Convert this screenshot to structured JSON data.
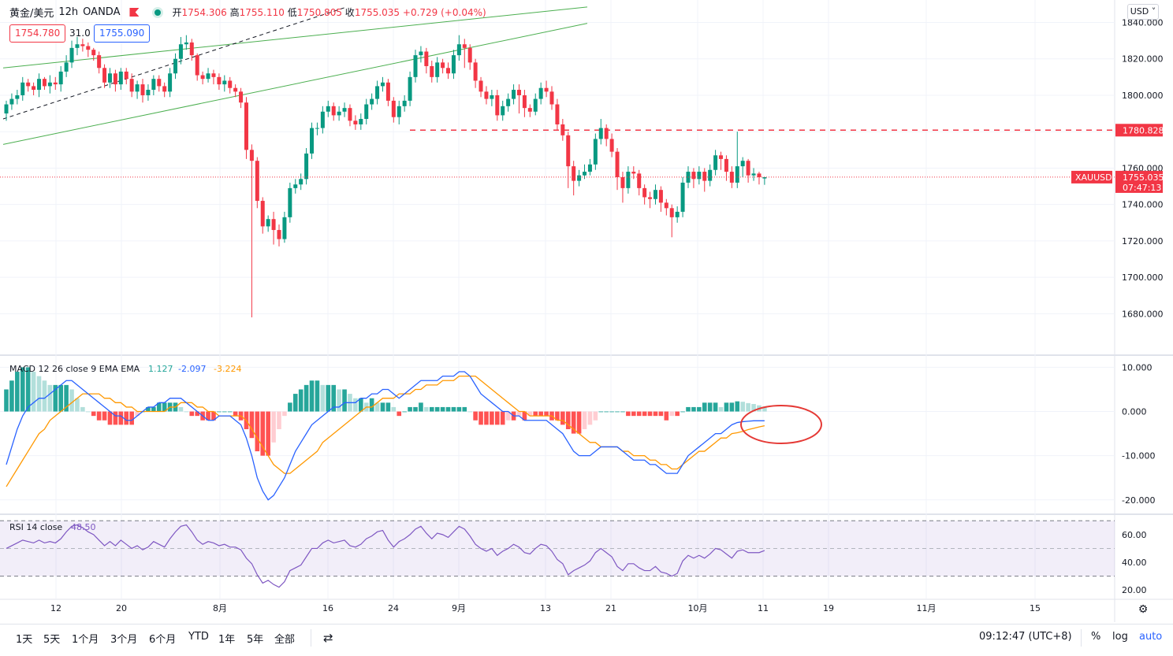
{
  "header": {
    "symbol": "黄金/美元",
    "interval": "12h",
    "broker": "OANDA",
    "open_label": "开",
    "open": "1754.306",
    "high_label": "高",
    "high": "1755.110",
    "low_label": "低",
    "low": "1750.805",
    "close_label": "收",
    "close": "1755.035",
    "change": "+0.729 (+0.04%)",
    "bid": "1754.780",
    "spread": "31.0",
    "ask": "1755.090"
  },
  "currency_button": "USD",
  "colors": {
    "up": "#089981",
    "down": "#f23645",
    "macd": "#2962ff",
    "signal": "#ff9800",
    "rsi": "#7e57c2",
    "channel": "#4caf50"
  },
  "chart_data": [
    {
      "type": "candlestick",
      "title": "黄金/美元 · 12h · OANDA",
      "x_labels": [
        "12",
        "20",
        "8月",
        "16",
        "24",
        "9月",
        "13",
        "21",
        "10月",
        "11",
        "19",
        "11月",
        "15"
      ],
      "y_ticks": [
        "1840.000",
        "1820.000",
        "1800.000",
        "1780.000",
        "1760.000",
        "1740.000",
        "1720.000",
        "1700.000",
        "1680.000"
      ],
      "ylim": [
        1662,
        1848
      ],
      "last_price": 1755.035,
      "last_price_label": "1755.035",
      "last_price_symbol": "XAUUSD",
      "countdown": "07:47:13",
      "horizontal_line": 1780.828,
      "horizontal_line_label": "1780.828",
      "closes": [
        1795,
        1798,
        1800,
        1807,
        1805,
        1803,
        1809,
        1805,
        1807,
        1806,
        1813,
        1818,
        1826,
        1828,
        1827,
        1825,
        1822,
        1815,
        1807,
        1812,
        1806,
        1813,
        1809,
        1802,
        1806,
        1800,
        1803,
        1809,
        1805,
        1802,
        1812,
        1820,
        1828,
        1829,
        1822,
        1811,
        1809,
        1812,
        1810,
        1806,
        1808,
        1804,
        1802,
        1796,
        1770,
        1764,
        1742,
        1728,
        1732,
        1726,
        1721,
        1733,
        1749,
        1751,
        1754,
        1768,
        1782,
        1782,
        1791,
        1794,
        1789,
        1791,
        1793,
        1786,
        1784,
        1787,
        1795,
        1798,
        1805,
        1807,
        1797,
        1788,
        1794,
        1797,
        1810,
        1822,
        1824,
        1816,
        1810,
        1818,
        1815,
        1812,
        1822,
        1828,
        1826,
        1818,
        1808,
        1802,
        1798,
        1800,
        1789,
        1794,
        1798,
        1803,
        1800,
        1793,
        1791,
        1798,
        1804,
        1802,
        1795,
        1784,
        1778,
        1761,
        1753,
        1756,
        1758,
        1762,
        1776,
        1782,
        1776,
        1769,
        1755,
        1749,
        1758,
        1757,
        1749,
        1744,
        1743,
        1748,
        1741,
        1738,
        1733,
        1736,
        1752,
        1758,
        1754,
        1758,
        1753,
        1759,
        1767,
        1765,
        1758,
        1752,
        1761,
        1764,
        1756,
        1757,
        1755,
        1755
      ],
      "opens": [
        1790,
        1795,
        1798,
        1800,
        1807,
        1805,
        1803,
        1809,
        1805,
        1807,
        1806,
        1813,
        1818,
        1826,
        1828,
        1827,
        1825,
        1822,
        1815,
        1807,
        1812,
        1806,
        1813,
        1809,
        1802,
        1806,
        1800,
        1803,
        1809,
        1805,
        1802,
        1812,
        1820,
        1828,
        1829,
        1822,
        1811,
        1809,
        1812,
        1810,
        1806,
        1808,
        1804,
        1802,
        1796,
        1770,
        1764,
        1742,
        1728,
        1732,
        1726,
        1721,
        1733,
        1749,
        1751,
        1754,
        1768,
        1782,
        1782,
        1791,
        1794,
        1789,
        1791,
        1793,
        1786,
        1784,
        1787,
        1795,
        1798,
        1805,
        1807,
        1797,
        1788,
        1794,
        1797,
        1810,
        1822,
        1824,
        1816,
        1810,
        1818,
        1815,
        1812,
        1822,
        1828,
        1826,
        1818,
        1808,
        1802,
        1798,
        1800,
        1789,
        1794,
        1798,
        1803,
        1800,
        1793,
        1791,
        1798,
        1804,
        1802,
        1795,
        1784,
        1778,
        1761,
        1753,
        1756,
        1758,
        1762,
        1776,
        1782,
        1776,
        1769,
        1755,
        1749,
        1758,
        1757,
        1749,
        1744,
        1743,
        1748,
        1741,
        1738,
        1733,
        1736,
        1752,
        1758,
        1754,
        1758,
        1753,
        1759,
        1767,
        1765,
        1758,
        1752,
        1761,
        1764,
        1756,
        1757,
        1754.306
      ],
      "highs": [
        1797,
        1801,
        1803,
        1810,
        1809,
        1807,
        1812,
        1810,
        1811,
        1810,
        1816,
        1822,
        1830,
        1832,
        1831,
        1829,
        1826,
        1824,
        1817,
        1815,
        1814,
        1815,
        1815,
        1812,
        1808,
        1809,
        1806,
        1811,
        1811,
        1807,
        1815,
        1823,
        1832,
        1833,
        1831,
        1823,
        1813,
        1815,
        1814,
        1812,
        1811,
        1810,
        1806,
        1804,
        1799,
        1773,
        1766,
        1744,
        1734,
        1736,
        1729,
        1736,
        1752,
        1754,
        1757,
        1771,
        1785,
        1785,
        1794,
        1797,
        1796,
        1794,
        1796,
        1795,
        1789,
        1790,
        1798,
        1801,
        1808,
        1810,
        1809,
        1799,
        1797,
        1800,
        1813,
        1825,
        1827,
        1826,
        1819,
        1821,
        1820,
        1818,
        1825,
        1833,
        1831,
        1828,
        1820,
        1810,
        1805,
        1803,
        1803,
        1797,
        1801,
        1806,
        1806,
        1803,
        1795,
        1801,
        1807,
        1808,
        1805,
        1798,
        1787,
        1780,
        1764,
        1759,
        1762,
        1765,
        1779,
        1787,
        1784,
        1779,
        1771,
        1758,
        1761,
        1761,
        1759,
        1751,
        1747,
        1751,
        1750,
        1743,
        1740,
        1739,
        1755,
        1761,
        1760,
        1761,
        1760,
        1762,
        1770,
        1769,
        1767,
        1761,
        1780,
        1766,
        1765,
        1760,
        1758,
        1755.11
      ],
      "lows": [
        1786,
        1792,
        1795,
        1797,
        1802,
        1800,
        1799,
        1803,
        1801,
        1803,
        1802,
        1810,
        1815,
        1822,
        1824,
        1821,
        1819,
        1812,
        1804,
        1804,
        1802,
        1803,
        1806,
        1799,
        1798,
        1796,
        1797,
        1800,
        1802,
        1799,
        1799,
        1809,
        1817,
        1825,
        1819,
        1808,
        1806,
        1807,
        1806,
        1803,
        1802,
        1801,
        1799,
        1793,
        1765,
        1678,
        1738,
        1724,
        1725,
        1718,
        1717,
        1719,
        1730,
        1746,
        1748,
        1751,
        1765,
        1778,
        1779,
        1788,
        1786,
        1786,
        1788,
        1783,
        1781,
        1781,
        1784,
        1792,
        1795,
        1802,
        1794,
        1785,
        1784,
        1791,
        1794,
        1807,
        1818,
        1812,
        1807,
        1807,
        1812,
        1809,
        1809,
        1819,
        1815,
        1814,
        1804,
        1799,
        1795,
        1794,
        1786,
        1786,
        1791,
        1795,
        1790,
        1788,
        1788,
        1789,
        1795,
        1799,
        1792,
        1781,
        1775,
        1749,
        1745,
        1750,
        1754,
        1756,
        1759,
        1773,
        1772,
        1766,
        1748,
        1741,
        1746,
        1754,
        1745,
        1740,
        1738,
        1740,
        1736,
        1734,
        1722,
        1730,
        1733,
        1749,
        1749,
        1751,
        1747,
        1750,
        1756,
        1759,
        1753,
        1749,
        1749,
        1755,
        1752,
        1753,
        1751,
        1750.805
      ]
    },
    {
      "type": "line",
      "title": "MACD 12 26 close 9 EMA EMA",
      "values_shown": [
        "1.127",
        "-2.097",
        "-3.224"
      ],
      "y_ticks": [
        "10.000",
        "0.000",
        "-10.000",
        "-20.000"
      ],
      "ylim": [
        -22,
        11.5
      ],
      "series": [
        {
          "name": "MACD",
          "values": [
            -12,
            -8,
            -4,
            -1,
            1,
            2,
            3,
            3,
            4,
            5,
            6,
            7,
            7,
            6,
            5,
            4,
            3,
            2,
            1,
            0,
            -1,
            -1,
            -2,
            -2,
            -1,
            0,
            1,
            1,
            2,
            2,
            3,
            3,
            3,
            2,
            1,
            0,
            -1,
            -2,
            -2,
            -1,
            -1,
            -1,
            -2,
            -3,
            -6,
            -10,
            -15,
            -18,
            -20,
            -19,
            -17,
            -15,
            -12,
            -9,
            -7,
            -5,
            -3,
            -2,
            -1,
            0,
            1,
            1,
            2,
            2,
            2,
            3,
            3,
            4,
            4,
            5,
            5,
            4,
            3,
            4,
            5,
            6,
            7,
            7,
            7,
            7,
            8,
            8,
            8,
            9,
            9,
            8,
            6,
            4,
            3,
            2,
            1,
            0,
            0,
            -1,
            -1,
            -2,
            -2,
            -2,
            -2,
            -2,
            -3,
            -4,
            -5,
            -7,
            -9,
            -10,
            -10,
            -10,
            -9,
            -8,
            -8,
            -8,
            -8,
            -9,
            -10,
            -11,
            -11,
            -11,
            -12,
            -12,
            -13,
            -14,
            -14,
            -14,
            -12,
            -10,
            -9,
            -8,
            -7,
            -6,
            -5,
            -5,
            -4,
            -3,
            -2.5,
            -2.3,
            -2.2,
            -2.1,
            -2.1,
            -2.097
          ]
        },
        {
          "name": "Signal",
          "values": [
            -17,
            -15,
            -13,
            -11,
            -9,
            -7,
            -5,
            -4,
            -2,
            -1,
            0,
            1,
            2,
            3,
            4,
            4,
            4,
            4,
            3,
            3,
            2,
            2,
            1,
            1,
            0,
            0,
            0,
            0,
            0,
            0,
            1,
            1,
            2,
            2,
            2,
            1,
            1,
            0,
            0,
            -1,
            -1,
            -1,
            -1,
            -1,
            -2,
            -4,
            -6,
            -8,
            -10,
            -12,
            -13,
            -14,
            -14,
            -13,
            -12,
            -11,
            -10,
            -9,
            -7,
            -6,
            -5,
            -4,
            -3,
            -2,
            -1,
            0,
            1,
            1,
            2,
            3,
            3,
            3,
            4,
            4,
            4,
            5,
            5,
            6,
            6,
            6,
            7,
            7,
            7,
            8,
            8,
            8,
            8,
            7,
            6,
            5,
            4,
            3,
            2,
            1,
            0,
            0,
            -1,
            -1,
            -1,
            -1,
            -1,
            -2,
            -2,
            -3,
            -4,
            -5,
            -6,
            -7,
            -7,
            -8,
            -8,
            -8,
            -8,
            -9,
            -9,
            -10,
            -10,
            -10,
            -11,
            -11,
            -12,
            -12,
            -13,
            -13,
            -12,
            -11,
            -10,
            -9,
            -9,
            -8,
            -7,
            -6,
            -6,
            -5,
            -4.8,
            -4.5,
            -4.1,
            -3.8,
            -3.5,
            -3.224
          ]
        }
      ]
    },
    {
      "type": "line",
      "title": "RSI 14 close",
      "value_shown": "48.50",
      "y_ticks": [
        "60.00",
        "40.00",
        "20.00"
      ],
      "ylim": [
        15,
        73
      ],
      "bands": [
        30,
        50,
        70
      ],
      "values": [
        50,
        52,
        54,
        56,
        55,
        54,
        56,
        54,
        55,
        54,
        57,
        62,
        66,
        67,
        65,
        62,
        60,
        56,
        52,
        55,
        52,
        56,
        53,
        50,
        52,
        49,
        51,
        55,
        53,
        51,
        57,
        62,
        66,
        67,
        62,
        56,
        53,
        55,
        54,
        52,
        53,
        51,
        51,
        49,
        43,
        39,
        31,
        25,
        27,
        24,
        22,
        26,
        34,
        36,
        38,
        44,
        50,
        50,
        54,
        56,
        54,
        55,
        56,
        52,
        51,
        53,
        57,
        59,
        62,
        63,
        56,
        51,
        55,
        57,
        60,
        64,
        66,
        61,
        57,
        61,
        60,
        58,
        62,
        66,
        64,
        59,
        53,
        50,
        48,
        50,
        45,
        48,
        50,
        53,
        51,
        47,
        46,
        50,
        53,
        52,
        48,
        42,
        39,
        31,
        34,
        36,
        38,
        41,
        47,
        50,
        47,
        44,
        37,
        34,
        39,
        39,
        36,
        34,
        34,
        37,
        33,
        32,
        30,
        32,
        41,
        45,
        43,
        45,
        43,
        46,
        50,
        49,
        46,
        43,
        48,
        49,
        47,
        47,
        47,
        48.5
      ]
    }
  ],
  "time_axis_labels": [
    "12",
    "20",
    "8月",
    "16",
    "24",
    "9月",
    "13",
    "21",
    "10月",
    "11",
    "19",
    "11月",
    "15"
  ],
  "bottom_bar": {
    "ranges": [
      "1天",
      "5天",
      "1个月",
      "3个月",
      "6个月",
      "YTD",
      "1年",
      "5年",
      "全部"
    ],
    "clock": "09:12:47 (UTC+8)",
    "percent": "%",
    "log": "log",
    "auto": "auto"
  }
}
